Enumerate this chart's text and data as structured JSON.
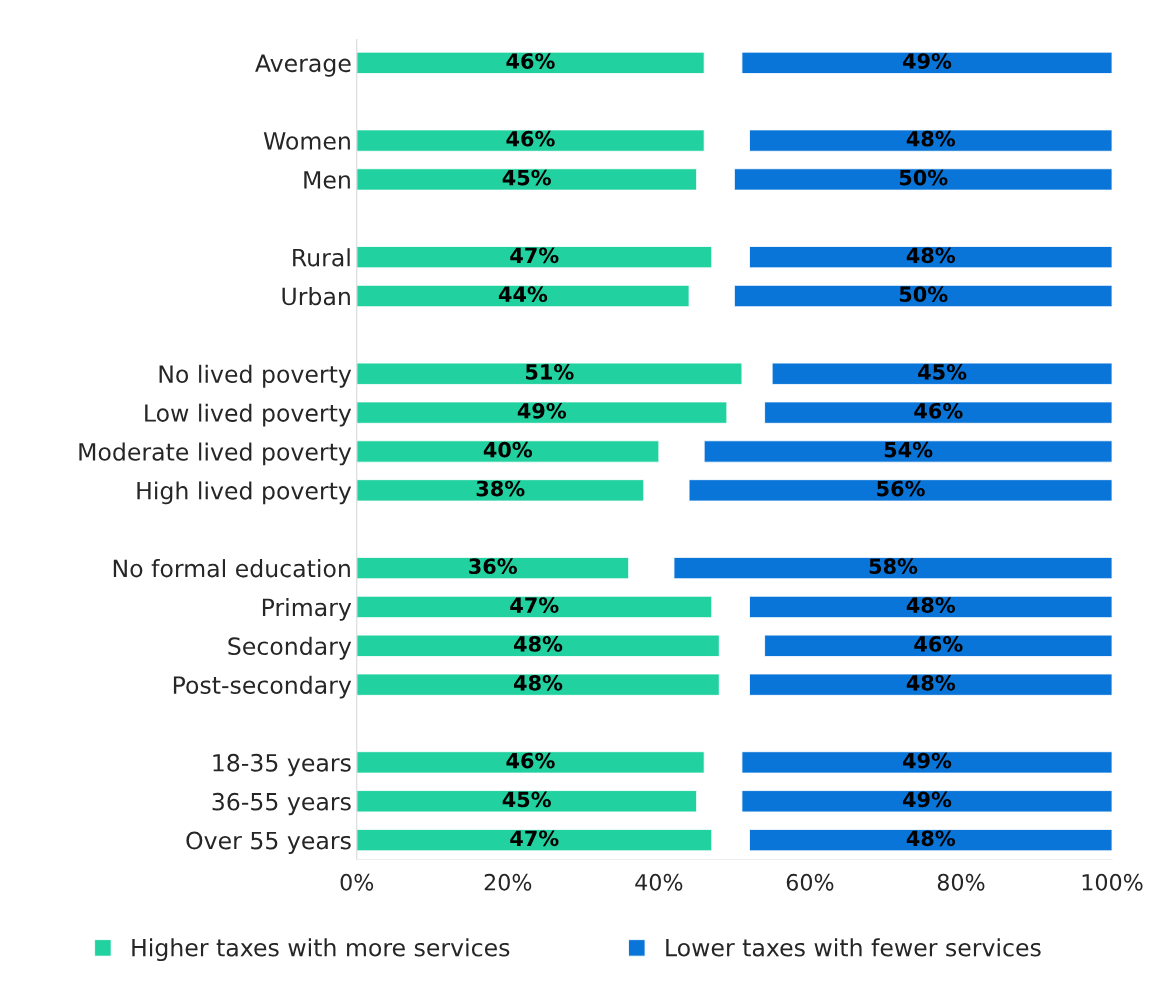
{
  "chart_data": {
    "type": "bar",
    "orientation": "horizontal",
    "categories": [
      "Average",
      null,
      "Women",
      "Men",
      null,
      "Rural",
      "Urban",
      null,
      "No lived poverty",
      "Low lived poverty",
      "Moderate lived poverty",
      "High lived poverty",
      null,
      "No formal education",
      "Primary",
      "Secondary",
      "Post-secondary",
      null,
      "18-35 years",
      "36-55 years",
      "Over 55 years"
    ],
    "series": [
      {
        "name": "Higher taxes with more services",
        "color": "#21d19f",
        "values": [
          46,
          null,
          46,
          45,
          null,
          47,
          44,
          null,
          51,
          49,
          40,
          38,
          null,
          36,
          47,
          48,
          48,
          null,
          46,
          45,
          47
        ],
        "base": [
          0,
          null,
          0,
          0,
          null,
          0,
          0,
          null,
          0,
          0,
          0,
          0,
          null,
          0,
          0,
          0,
          0,
          null,
          0,
          0,
          0
        ],
        "value_labels": [
          "46%",
          null,
          "46%",
          "45%",
          null,
          "47%",
          "44%",
          null,
          "51%",
          "49%",
          "40%",
          "38%",
          null,
          "36%",
          "47%",
          "48%",
          "48%",
          null,
          "46%",
          "45%",
          "47%"
        ]
      },
      {
        "name": "Lower taxes with fewer services",
        "color": "#0a75d8",
        "values": [
          49,
          null,
          48,
          50,
          null,
          48,
          50,
          null,
          45,
          46,
          54,
          56,
          null,
          58,
          48,
          46,
          48,
          null,
          49,
          49,
          48
        ],
        "base": [
          51,
          null,
          52,
          50,
          null,
          52,
          50,
          null,
          55,
          54,
          46,
          44,
          null,
          42,
          52,
          54,
          52,
          null,
          51,
          51,
          52
        ],
        "value_labels": [
          "49%",
          null,
          "48%",
          "50%",
          null,
          "48%",
          "50%",
          null,
          "45%",
          "46%",
          "54%",
          "56%",
          null,
          "58%",
          "48%",
          "46%",
          "48%",
          null,
          "49%",
          "49%",
          "48%"
        ]
      }
    ],
    "xlim": [
      0,
      100
    ],
    "xticks": [
      {
        "value": 0,
        "label": "0%"
      },
      {
        "value": 20,
        "label": "20%"
      },
      {
        "value": 40,
        "label": "40%"
      },
      {
        "value": 60,
        "label": "60%"
      },
      {
        "value": 80,
        "label": "80%"
      },
      {
        "value": 100,
        "label": "100%"
      }
    ],
    "grid": false,
    "legend": "bottom"
  }
}
